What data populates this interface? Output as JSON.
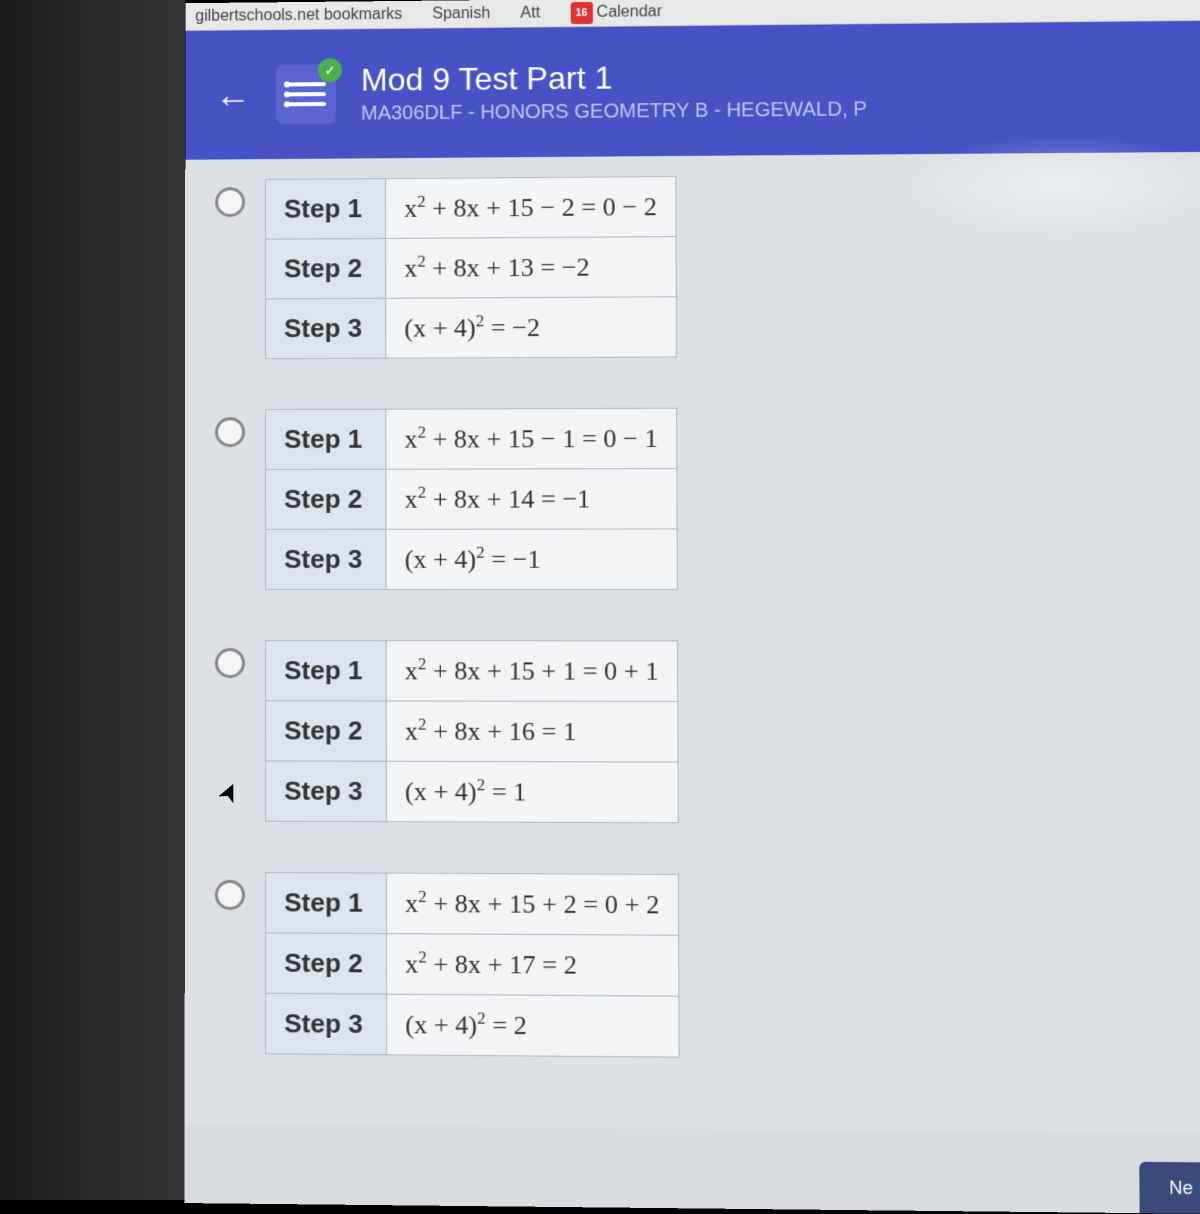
{
  "topbar": {
    "bookmarks": "gilbertschools.net bookmarks",
    "spanish": "Spanish",
    "att": "Att",
    "calendar_num": "16",
    "calendar": "Calendar"
  },
  "header": {
    "title": "Mod 9 Test Part 1",
    "subtitle": "MA306DLF - HONORS GEOMETRY B - HEGEWALD, P"
  },
  "options": [
    {
      "steps": [
        {
          "label": "Step 1",
          "eq": "x<span class='sup'>2</span> + 8x + 15 − 2 = 0 − 2"
        },
        {
          "label": "Step 2",
          "eq": "x<span class='sup'>2</span> + 8x + 13 = −2"
        },
        {
          "label": "Step 3",
          "eq": "(x + 4)<span class='sup'>2</span> = −2"
        }
      ]
    },
    {
      "steps": [
        {
          "label": "Step 1",
          "eq": "x<span class='sup'>2</span> + 8x + 15 − 1 = 0 − 1"
        },
        {
          "label": "Step 2",
          "eq": "x<span class='sup'>2</span> + 8x + 14 = −1"
        },
        {
          "label": "Step 3",
          "eq": "(x + 4)<span class='sup'>2</span> = −1"
        }
      ]
    },
    {
      "steps": [
        {
          "label": "Step 1",
          "eq": "x<span class='sup'>2</span> + 8x + 15 + 1 = 0 + 1"
        },
        {
          "label": "Step 2",
          "eq": "x<span class='sup'>2</span> + 8x + 16 = 1"
        },
        {
          "label": "Step 3",
          "eq": "(x + 4)<span class='sup'>2</span> = 1"
        }
      ]
    },
    {
      "steps": [
        {
          "label": "Step 1",
          "eq": "x<span class='sup'>2</span> + 8x + 15 + 2 = 0 + 2"
        },
        {
          "label": "Step 2",
          "eq": "x<span class='sup'>2</span> + 8x + 17 = 2"
        },
        {
          "label": "Step 3",
          "eq": "(x + 4)<span class='sup'>2</span> = 2"
        }
      ]
    }
  ],
  "bottom_corner": "Ne",
  "colors": {
    "header_bg": "#4753c4",
    "header_sub": "#c0c7f0",
    "content_bg": "#dde1e5",
    "step_label_bg": "#dce4ee",
    "step_eq_bg": "#f2f4f6",
    "border": "#b0b8c0",
    "radio_border": "#888"
  }
}
